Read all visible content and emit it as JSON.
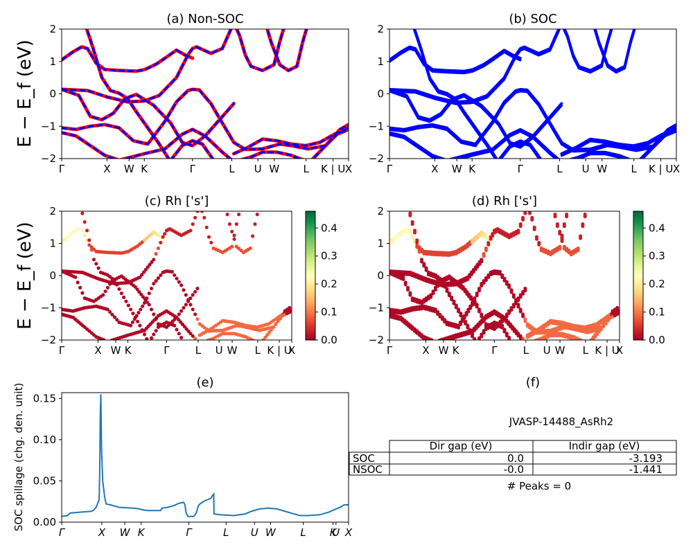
{
  "figure": {
    "ylabel_band": "E − E_f (eV)",
    "ylabel_spillage": "SOC spillage (chg. den. unit)"
  },
  "chart_data": [
    {
      "id": "a",
      "type": "line",
      "title": "(a) Non-SOC",
      "ylim": [
        -2,
        2
      ],
      "yticks": [
        "2",
        "1",
        "0",
        "−1",
        "−2"
      ],
      "kticks": [
        "Γ",
        "X",
        "W",
        "K",
        "Γ",
        "L",
        "U",
        "W",
        "L",
        "K | U",
        "X"
      ],
      "kpos": [
        0,
        0.158,
        0.235,
        0.288,
        0.456,
        0.593,
        0.684,
        0.741,
        0.852,
        0.946,
        1.0
      ],
      "series": [
        {
          "color": "#ff0000",
          "bands": "non-SOC bands (red)"
        },
        {
          "color": "#0000ff",
          "bands": "SOC bands overlay (blue dashed)"
        }
      ]
    },
    {
      "id": "b",
      "type": "line",
      "title": "(b) SOC",
      "ylim": [
        -2,
        2
      ],
      "yticks": [
        "2",
        "1",
        "0",
        "−1",
        "−2"
      ],
      "kticks": [
        "Γ",
        "X",
        "W",
        "K",
        "Γ",
        "L",
        "U",
        "W",
        "L",
        "K | U",
        "X"
      ],
      "kpos": [
        0,
        0.158,
        0.235,
        0.288,
        0.456,
        0.593,
        0.684,
        0.741,
        0.852,
        0.946,
        1.0
      ],
      "series": [
        {
          "color": "#0000ff"
        }
      ]
    },
    {
      "id": "c",
      "type": "scatter",
      "title": "(c)  Rh ['s']",
      "ylim": [
        -2,
        2
      ],
      "yticks": [
        "2",
        "1",
        "0",
        "−1",
        "−2"
      ],
      "kticks": [
        "Γ",
        "X",
        "W",
        "K",
        "Γ",
        "L",
        "U",
        "W",
        "L",
        "K | U",
        "X"
      ],
      "kpos": [
        0,
        0.158,
        0.235,
        0.288,
        0.456,
        0.593,
        0.684,
        0.741,
        0.852,
        0.946,
        1.0
      ],
      "colorbar": {
        "min": 0.0,
        "max": 0.46,
        "ticks": [
          "0.0",
          "0.1",
          "0.2",
          "0.3",
          "0.4"
        ],
        "tickvals": [
          0,
          0.1,
          0.2,
          0.3,
          0.4
        ],
        "cmap": "RdYlGn"
      }
    },
    {
      "id": "d",
      "type": "scatter",
      "title": "(d) Rh ['s']",
      "ylim": [
        -2,
        2
      ],
      "yticks": [
        "2",
        "1",
        "0",
        "−1",
        "−2"
      ],
      "kticks": [
        "Γ",
        "X",
        "W",
        "K",
        "Γ",
        "L",
        "U",
        "W",
        "L",
        "K | U",
        "X"
      ],
      "kpos": [
        0,
        0.158,
        0.235,
        0.288,
        0.456,
        0.593,
        0.684,
        0.741,
        0.852,
        0.946,
        1.0
      ],
      "colorbar": {
        "min": 0.0,
        "max": 0.46,
        "ticks": [
          "0.0",
          "0.1",
          "0.2",
          "0.3",
          "0.4"
        ],
        "tickvals": [
          0,
          0.1,
          0.2,
          0.3,
          0.4
        ],
        "cmap": "RdYlGn"
      }
    },
    {
      "id": "e",
      "type": "line",
      "title": "(e)",
      "ylabel": "SOC spillage (chg. den. unit)",
      "ylim": [
        0,
        0.157
      ],
      "yticks": [
        "0.15",
        "0.10",
        "0.05",
        "0.00"
      ],
      "ytickvals": [
        0.15,
        0.1,
        0.05,
        0.0
      ],
      "kticks": [
        "Γ",
        "X",
        "W",
        "K",
        "Γ",
        "L",
        "U",
        "W",
        "L",
        "K",
        "U",
        "X"
      ],
      "kpos": [
        0,
        0.14,
        0.22,
        0.277,
        0.443,
        0.573,
        0.672,
        0.728,
        0.842,
        0.946,
        0.956,
        1.0
      ],
      "series": [
        {
          "color": "#1f77b4"
        }
      ],
      "points": [
        [
          0.0,
          0.007
        ],
        [
          0.02,
          0.008
        ],
        [
          0.03,
          0.011
        ],
        [
          0.06,
          0.012
        ],
        [
          0.1,
          0.013
        ],
        [
          0.11,
          0.014
        ],
        [
          0.12,
          0.018
        ],
        [
          0.1305,
          0.027
        ],
        [
          0.1325,
          0.06
        ],
        [
          0.1345,
          0.13
        ],
        [
          0.1365,
          0.155
        ],
        [
          0.139,
          0.09
        ],
        [
          0.143,
          0.05
        ],
        [
          0.15,
          0.03
        ],
        [
          0.155,
          0.022
        ],
        [
          0.17,
          0.021
        ],
        [
          0.2,
          0.018
        ],
        [
          0.25,
          0.017
        ],
        [
          0.27,
          0.016
        ],
        [
          0.28,
          0.015
        ],
        [
          0.3,
          0.014
        ],
        [
          0.345,
          0.014
        ],
        [
          0.35,
          0.017
        ],
        [
          0.37,
          0.018
        ],
        [
          0.39,
          0.02
        ],
        [
          0.41,
          0.023
        ],
        [
          0.425,
          0.024
        ],
        [
          0.43,
          0.021
        ],
        [
          0.433,
          0.012
        ],
        [
          0.44,
          0.007
        ],
        [
          0.46,
          0.007
        ],
        [
          0.465,
          0.009
        ],
        [
          0.47,
          0.012
        ],
        [
          0.473,
          0.016
        ],
        [
          0.478,
          0.021
        ],
        [
          0.49,
          0.024
        ],
        [
          0.5,
          0.026
        ],
        [
          0.52,
          0.029
        ],
        [
          0.525,
          0.032
        ],
        [
          0.53,
          0.034
        ],
        [
          0.531,
          0.01
        ],
        [
          0.55,
          0.009
        ],
        [
          0.6,
          0.008
        ],
        [
          0.64,
          0.01
        ],
        [
          0.66,
          0.013
        ],
        [
          0.69,
          0.016
        ],
        [
          0.72,
          0.017
        ],
        [
          0.75,
          0.016
        ],
        [
          0.78,
          0.013
        ],
        [
          0.8,
          0.011
        ],
        [
          0.83,
          0.008
        ],
        [
          0.86,
          0.008
        ],
        [
          0.9,
          0.009
        ],
        [
          0.93,
          0.012
        ],
        [
          0.95,
          0.015
        ],
        [
          0.97,
          0.018
        ],
        [
          0.985,
          0.021
        ],
        [
          1.0,
          0.021
        ]
      ]
    },
    {
      "id": "f",
      "type": "table",
      "title": "(f)",
      "material": "JVASP-14488_AsRh2",
      "columns": [
        "Dir gap (eV)",
        "Indir gap (eV)"
      ],
      "rows": [
        {
          "label": "SOC",
          "values": [
            "0.0",
            "-3.193"
          ]
        },
        {
          "label": "NSOC",
          "values": [
            "-0.0",
            "-1.441"
          ]
        }
      ],
      "footer": "# Peaks = 0"
    }
  ]
}
